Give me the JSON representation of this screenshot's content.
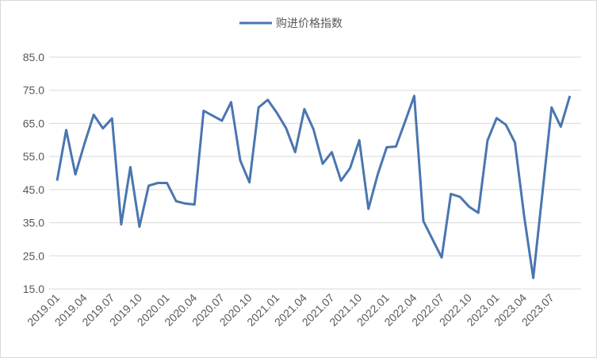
{
  "chart_data": {
    "type": "line",
    "categories": [
      "2019.01",
      null,
      null,
      "2019.04",
      null,
      null,
      "2019.07",
      null,
      null,
      "2019.10",
      null,
      null,
      "2020.01",
      null,
      null,
      "2020.04",
      null,
      null,
      "2020.07",
      null,
      null,
      "2020.10",
      null,
      null,
      "2021.01",
      null,
      null,
      "2021.04",
      null,
      null,
      "2021.07",
      null,
      null,
      "2021.10",
      null,
      null,
      "2022.01",
      null,
      null,
      "2022.04",
      null,
      null,
      "2022.07",
      null,
      null,
      "2022.10",
      null,
      null,
      "2023.01",
      null,
      null,
      "2023.04",
      null,
      null,
      "2023.07",
      null,
      null
    ],
    "series": [
      {
        "name": "购进价格指数",
        "color": "#4a76b0",
        "values": [
          47.7,
          63,
          49.6,
          59,
          67.6,
          63.5,
          66.5,
          34.5,
          51.8,
          33.8,
          46.2,
          47,
          47,
          41.5,
          40.8,
          40.5,
          68.8,
          67.3,
          65.8,
          71.4,
          53.8,
          47.2,
          69.8,
          72.1,
          68.2,
          63.6,
          56.3,
          69.3,
          63.2,
          52.8,
          56.3,
          47.7,
          51.5,
          59.9,
          39.2,
          49.5,
          57.8,
          58,
          65.5,
          73.3,
          35.5,
          30,
          24.5,
          43.7,
          42.8,
          39.8,
          38,
          59.8,
          66.6,
          64.6,
          59.2,
          37,
          18.3,
          44,
          69.8,
          64,
          73.3
        ]
      }
    ],
    "ylim": [
      15,
      85
    ],
    "yticks": [
      {
        "value": 15,
        "label": "15.0"
      },
      {
        "value": 25,
        "label": "25.0"
      },
      {
        "value": 35,
        "label": "35.0"
      },
      {
        "value": 45,
        "label": "45.0"
      },
      {
        "value": 55,
        "label": "55.0"
      },
      {
        "value": 65,
        "label": "65.0"
      },
      {
        "value": 75,
        "label": "75.0"
      },
      {
        "value": 85,
        "label": "85.0"
      }
    ],
    "grid": true,
    "legend": "top"
  }
}
